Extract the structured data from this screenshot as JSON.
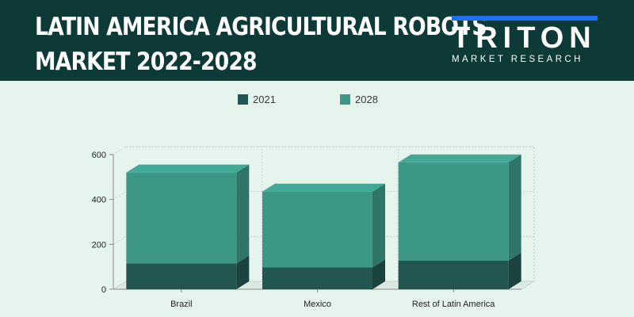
{
  "header": {
    "title_line1": "LATIN AMERICA AGRICULTURAL ROBOTS",
    "title_line2": "MARKET 2022-2028"
  },
  "logo": {
    "name": "TRITON",
    "tagline": "MARKET RESEARCH"
  },
  "colors": {
    "header_bg": "#0d3a36",
    "page_bg": "#e6f4ee",
    "series_2021": "#235551",
    "series_2028": "#3c9787"
  },
  "chart_data": {
    "type": "bar",
    "stacked": true,
    "three_d": true,
    "categories": [
      "Brazil",
      "Mexico",
      "Rest of Latin America"
    ],
    "series": [
      {
        "name": "2021",
        "values": [
          115,
          97,
          128
        ]
      },
      {
        "name": "2028",
        "values": [
          520,
          435,
          565
        ]
      }
    ],
    "ylim": [
      0,
      600
    ],
    "yticks": [
      0,
      200,
      400,
      600
    ],
    "grid": true,
    "legend": "top"
  }
}
